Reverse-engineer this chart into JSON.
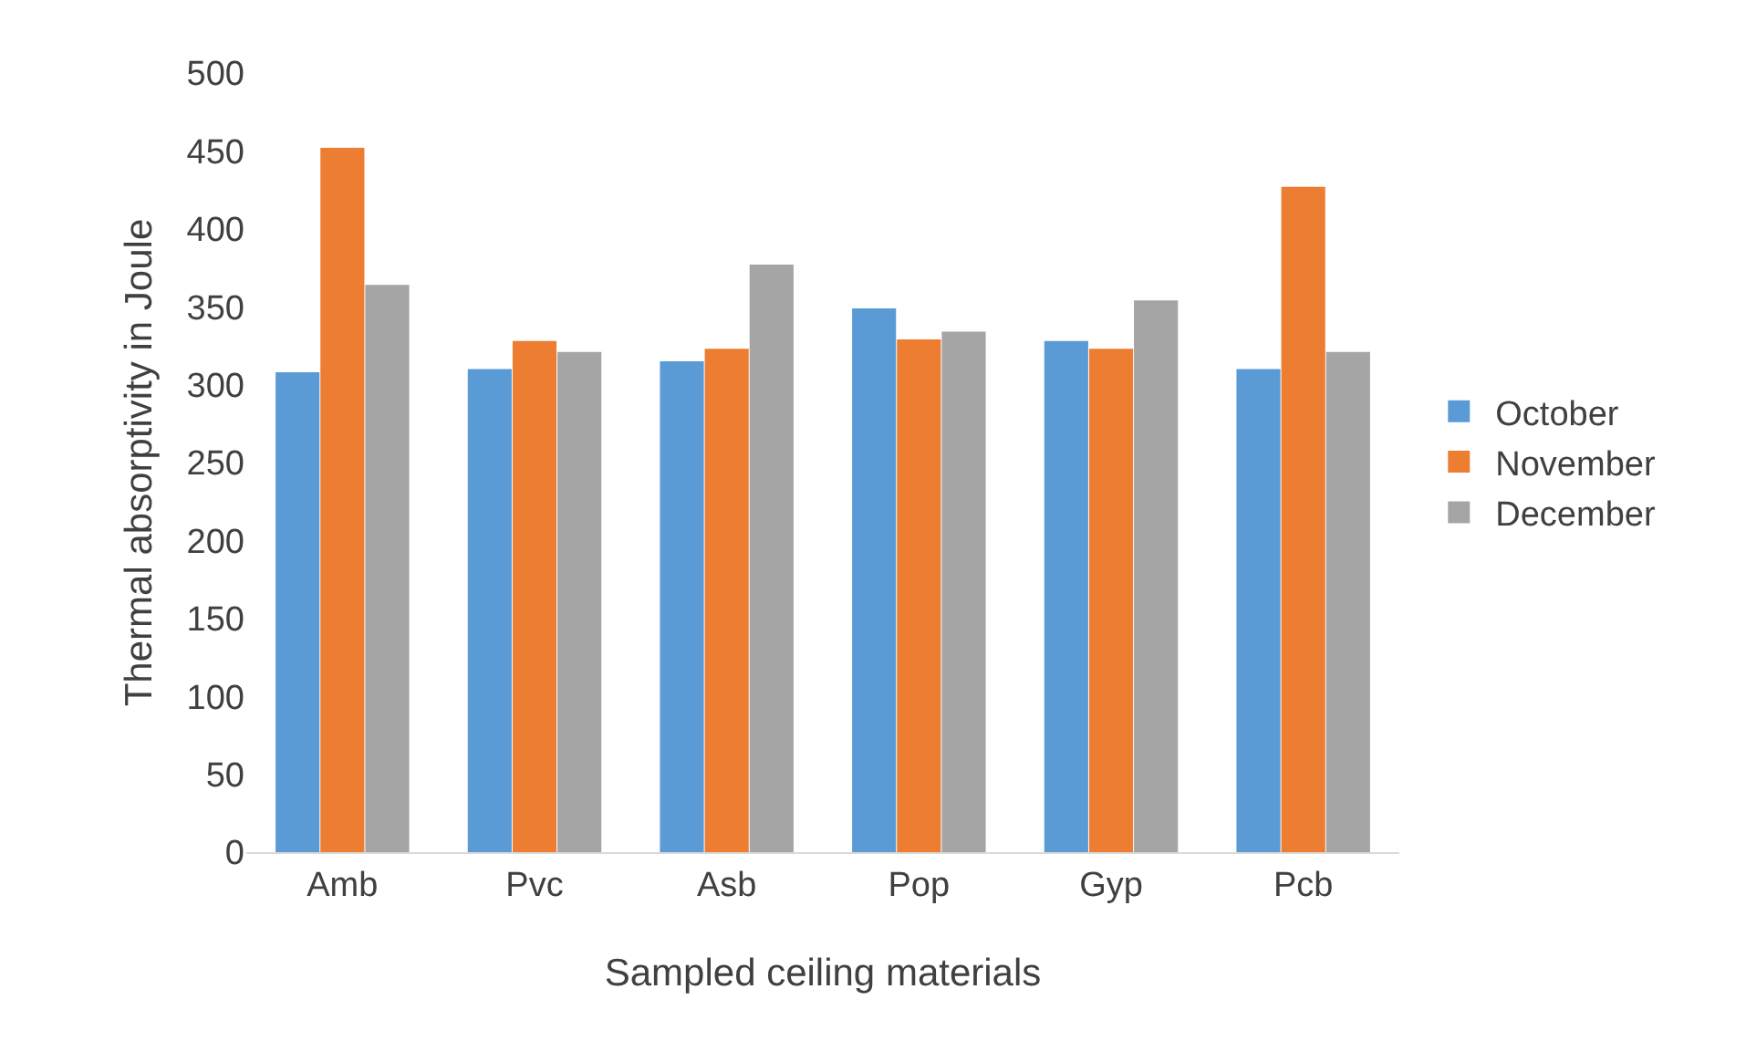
{
  "chart_data": {
    "type": "bar",
    "xlabel": "Sampled ceiling materials",
    "ylabel": "Thermal absorptivity in Joule",
    "categories": [
      "Amb",
      "Pvc",
      "Asb",
      "Pop",
      "Gyp",
      "Pcb"
    ],
    "series": [
      {
        "name": "October",
        "color": "#5b9bd5",
        "values": [
          308,
          310,
          315,
          349,
          328,
          310
        ]
      },
      {
        "name": "November",
        "color": "#ed7d31",
        "values": [
          452,
          328,
          323,
          329,
          323,
          427
        ]
      },
      {
        "name": "December",
        "color": "#a5a5a5",
        "values": [
          364,
          321,
          377,
          334,
          354,
          321
        ]
      }
    ],
    "ylim": [
      0,
      500
    ],
    "yticks": [
      0,
      50,
      100,
      150,
      200,
      250,
      300,
      350,
      400,
      450,
      500
    ],
    "grid": false,
    "legend": "right"
  }
}
